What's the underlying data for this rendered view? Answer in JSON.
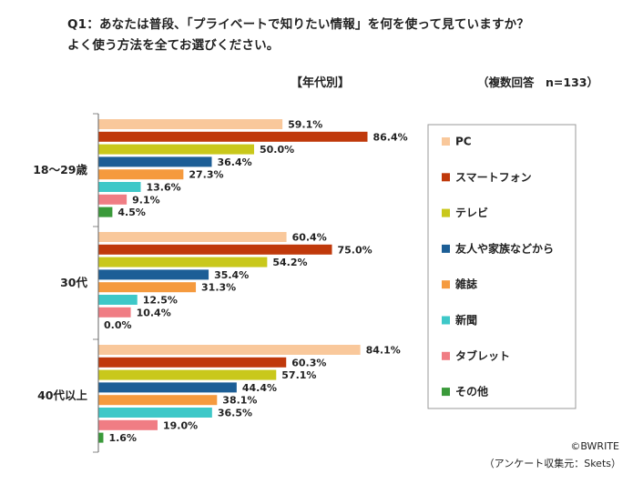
{
  "header": {
    "question_line1": "Q1：あなたは普段、「プライベートで知りたい情報」を何を使って見ていますか？",
    "question_line2": "よく使う方法を全てお選びください。",
    "subtitle": "【年代別】",
    "note": "（複数回答　n=133）"
  },
  "footer": {
    "credit": "©BWRITE",
    "source": "（アンケート収集元：Skets）"
  },
  "chart_data": {
    "type": "bar",
    "orientation": "horizontal",
    "categories": [
      "18～29歳",
      "30代",
      "40代以上"
    ],
    "value_suffix": "%",
    "xlim": [
      0,
      100
    ],
    "grid": false,
    "legend_position": "right",
    "series": [
      {
        "name": "PC",
        "color": "#f9c89b",
        "values": [
          59.1,
          60.4,
          84.1
        ]
      },
      {
        "name": "スマートフォン",
        "color": "#c0390b",
        "values": [
          86.4,
          75.0,
          60.3
        ]
      },
      {
        "name": "テレビ",
        "color": "#c9c81b",
        "values": [
          50.0,
          54.2,
          57.1
        ]
      },
      {
        "name": "友人や家族などから",
        "color": "#1c5e96",
        "values": [
          36.4,
          35.4,
          44.4
        ]
      },
      {
        "name": "雑誌",
        "color": "#f59a3e",
        "values": [
          27.3,
          31.3,
          38.1
        ]
      },
      {
        "name": "新聞",
        "color": "#3ec8c8",
        "values": [
          13.6,
          12.5,
          36.5
        ]
      },
      {
        "name": "タブレット",
        "color": "#f07d84",
        "values": [
          9.1,
          10.4,
          19.0
        ]
      },
      {
        "name": "その他",
        "color": "#3a9a3a",
        "values": [
          4.5,
          0.0,
          1.6
        ]
      }
    ]
  }
}
